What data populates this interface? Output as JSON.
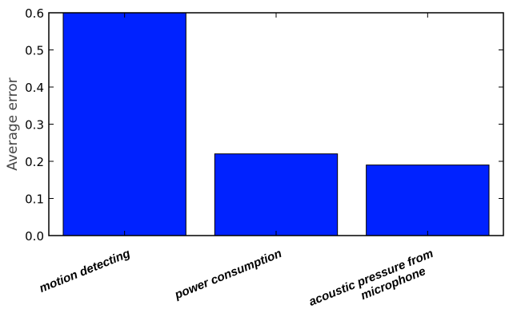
{
  "chart_data": {
    "type": "bar",
    "categories": [
      "motion detecting",
      "power consumption",
      "acoustic pressure from microphone"
    ],
    "category_lines": [
      [
        "motion detecting"
      ],
      [
        "power consumption"
      ],
      [
        "acoustic pressure from",
        "microphone"
      ]
    ],
    "values": [
      0.6,
      0.22,
      0.19
    ],
    "title": "",
    "xlabel": "",
    "ylabel": "Average error",
    "ylim": [
      0,
      0.6
    ],
    "yticks": [
      "0.0",
      "0.1",
      "0.2",
      "0.3",
      "0.4",
      "0.5",
      "0.6"
    ],
    "bar_color": "#0022ff",
    "grid": false,
    "legend": "none"
  }
}
